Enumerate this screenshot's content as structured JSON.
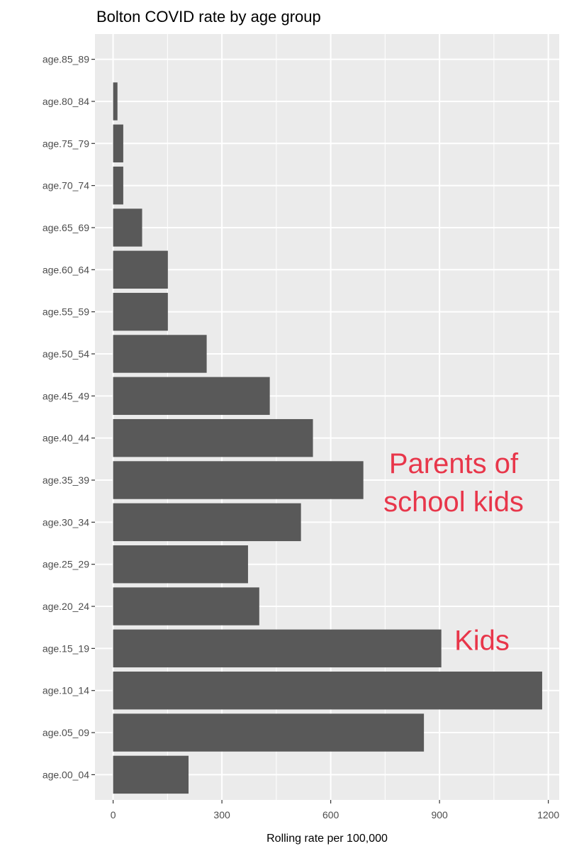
{
  "chart_data": {
    "type": "bar",
    "orientation": "horizontal",
    "title": "Bolton COVID rate by age group",
    "xlabel": "Rolling rate per 100,000",
    "ylabel": "",
    "xlim": [
      -50,
      1230
    ],
    "x_ticks": [
      0,
      300,
      600,
      900,
      1200
    ],
    "x_tick_labels": [
      "0",
      "300",
      "600",
      "900",
      "1200"
    ],
    "grid": true,
    "background_color": "#ebebeb",
    "grid_color": "#ffffff",
    "bar_color": "#595959",
    "categories": [
      "age.00_04",
      "age.05_09",
      "age.10_14",
      "age.15_19",
      "age.20_24",
      "age.25_29",
      "age.30_34",
      "age.35_39",
      "age.40_44",
      "age.45_49",
      "age.50_54",
      "age.55_59",
      "age.60_64",
      "age.65_69",
      "age.70_74",
      "age.75_79",
      "age.80_84",
      "age.85_89"
    ],
    "values": [
      208,
      857,
      1183,
      905,
      403,
      372,
      518,
      690,
      551,
      432,
      258,
      151,
      151,
      80,
      28,
      28,
      12,
      0
    ],
    "annotations": [
      {
        "lines": [
          "Parents of",
          "school kids"
        ],
        "color": "#e8364a",
        "near_category": "age.35_39"
      },
      {
        "lines": [
          "Kids"
        ],
        "color": "#e8364a",
        "near_category": "age.15_19"
      }
    ]
  }
}
